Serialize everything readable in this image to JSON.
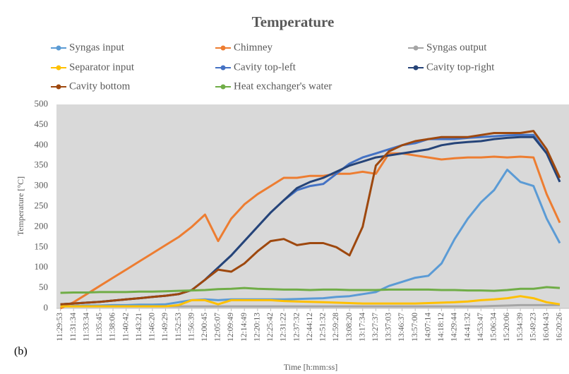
{
  "chart_data": {
    "type": "line",
    "title": "Temperature",
    "x_label": "Time [h:mm:ss]",
    "y_label": "Temperature [°C]",
    "annotation": "(b)",
    "categories": [
      "11:29:53",
      "11:31:34",
      "11:33:34",
      "11:35:45",
      "11:38:06",
      "11:40:42",
      "11:43:21",
      "11:46:20",
      "11:49:29",
      "11:52:53",
      "11:56:39",
      "12:00:45",
      "12:05:07",
      "12:09:49",
      "12:14:49",
      "12:20:13",
      "12:25:42",
      "12:31:22",
      "12:37:32",
      "12:44:12",
      "12:51:32",
      "12:59:28",
      "13:08:20",
      "13:17:34",
      "13:27:37",
      "13:37:03",
      "13:46:37",
      "13:57:00",
      "14:07:14",
      "14:18:12",
      "14:29:44",
      "14:41:32",
      "14:53:47",
      "15:06:34",
      "15:20:06",
      "15:34:39",
      "15:49:23",
      "16:04:43",
      "16:20:26"
    ],
    "series": [
      {
        "name": "Syngas input",
        "color": "#5b9bd5",
        "values": [
          5,
          6,
          7,
          7,
          8,
          8,
          9,
          9,
          10,
          15,
          20,
          22,
          20,
          22,
          22,
          22,
          22,
          22,
          23,
          24,
          25,
          28,
          30,
          35,
          40,
          55,
          65,
          75,
          80,
          110,
          170,
          220,
          260,
          290,
          340,
          310,
          300,
          220,
          160
        ]
      },
      {
        "name": "Chimney",
        "color": "#ed7d31",
        "values": [
          0,
          15,
          35,
          55,
          75,
          95,
          115,
          135,
          155,
          175,
          200,
          230,
          165,
          220,
          255,
          280,
          300,
          320,
          320,
          325,
          325,
          330,
          330,
          335,
          330,
          380,
          380,
          375,
          370,
          365,
          368,
          370,
          370,
          372,
          370,
          372,
          370,
          280,
          210
        ]
      },
      {
        "name": "Syngas output",
        "color": "#a5a5a5",
        "values": [
          5,
          5,
          5,
          5,
          5,
          5,
          5,
          5,
          5,
          5,
          5,
          5,
          5,
          5,
          5,
          5,
          5,
          5,
          5,
          5,
          5,
          5,
          5,
          5,
          5,
          5,
          5,
          5,
          5,
          5,
          5,
          5,
          5,
          6,
          7,
          8,
          8,
          8,
          8
        ]
      },
      {
        "name": "Separator input",
        "color": "#ffc000",
        "values": [
          5,
          5,
          5,
          5,
          5,
          5,
          5,
          5,
          5,
          8,
          20,
          20,
          10,
          20,
          20,
          20,
          20,
          18,
          17,
          16,
          15,
          14,
          13,
          12,
          12,
          12,
          12,
          12,
          13,
          14,
          15,
          17,
          20,
          22,
          25,
          30,
          25,
          15,
          10
        ]
      },
      {
        "name": "Cavity top-left",
        "color": "#4472c4",
        "values": [
          10,
          12,
          14,
          16,
          19,
          22,
          25,
          28,
          31,
          35,
          45,
          70,
          100,
          130,
          165,
          200,
          235,
          265,
          290,
          300,
          305,
          330,
          355,
          370,
          380,
          390,
          400,
          405,
          415,
          415,
          415,
          418,
          420,
          422,
          424,
          425,
          425,
          380,
          310
        ]
      },
      {
        "name": "Cavity top-right",
        "color": "#264478",
        "values": [
          10,
          12,
          14,
          16,
          19,
          22,
          25,
          28,
          31,
          35,
          45,
          70,
          100,
          130,
          165,
          200,
          235,
          265,
          295,
          310,
          320,
          335,
          350,
          360,
          370,
          375,
          380,
          385,
          390,
          400,
          405,
          408,
          410,
          415,
          418,
          420,
          420,
          380,
          310
        ]
      },
      {
        "name": "Cavity bottom",
        "color": "#9e480e",
        "values": [
          10,
          12,
          14,
          16,
          19,
          22,
          25,
          28,
          31,
          35,
          45,
          70,
          95,
          90,
          110,
          140,
          165,
          170,
          155,
          160,
          160,
          150,
          130,
          200,
          350,
          385,
          400,
          410,
          415,
          420,
          420,
          420,
          425,
          430,
          430,
          430,
          435,
          390,
          320
        ]
      },
      {
        "name": "Heat exchanger's water",
        "color": "#70ad47",
        "values": [
          38,
          39,
          39,
          40,
          40,
          40,
          41,
          41,
          42,
          43,
          44,
          45,
          47,
          48,
          50,
          48,
          47,
          46,
          46,
          45,
          46,
          46,
          45,
          45,
          45,
          46,
          46,
          46,
          46,
          45,
          45,
          44,
          44,
          43,
          45,
          48,
          48,
          52,
          50
        ]
      }
    ],
    "ylim": [
      0,
      500
    ],
    "yticks": [
      0,
      50,
      100,
      150,
      200,
      250,
      300,
      350,
      400,
      450,
      500
    ],
    "grid": false,
    "legend": "top"
  }
}
